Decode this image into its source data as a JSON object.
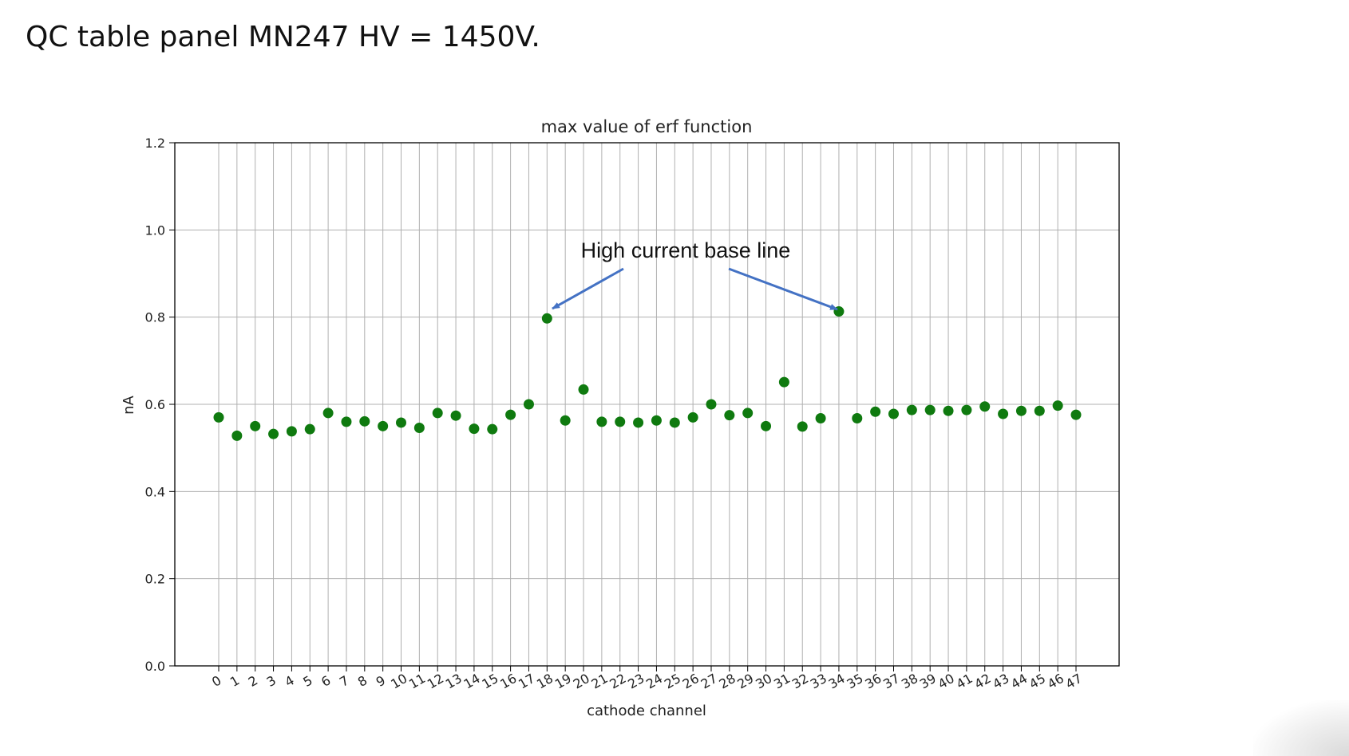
{
  "slide": {
    "title": "QC table panel MN247 HV = 1450V."
  },
  "chart_data": {
    "type": "scatter",
    "title": "max value of erf function",
    "xlabel": "cathode channel",
    "ylabel": "nA",
    "ylim": [
      0.0,
      1.2
    ],
    "yticks": [
      0.0,
      0.2,
      0.4,
      0.6,
      0.8,
      1.0,
      1.2
    ],
    "ytick_labels": [
      "0.0",
      "0.2",
      "0.4",
      "0.6",
      "0.8",
      "1.0",
      "1.2"
    ],
    "xticks": [
      0,
      1,
      2,
      3,
      4,
      5,
      6,
      7,
      8,
      9,
      10,
      11,
      12,
      13,
      14,
      15,
      16,
      17,
      18,
      19,
      20,
      21,
      22,
      23,
      24,
      25,
      26,
      27,
      28,
      29,
      30,
      31,
      32,
      33,
      34,
      35,
      36,
      37,
      38,
      39,
      40,
      41,
      42,
      43,
      44,
      45,
      46,
      47
    ],
    "xtick_labels": [
      "0",
      "1",
      "2",
      "3",
      "4",
      "5",
      "6",
      "7",
      "8",
      "9",
      "10",
      "11",
      "12",
      "13",
      "14",
      "15",
      "16",
      "17",
      "18",
      "19",
      "20",
      "21",
      "22",
      "23",
      "24",
      "25",
      "26",
      "27",
      "28",
      "29",
      "30",
      "31",
      "32",
      "33",
      "34",
      "35",
      "36",
      "37",
      "38",
      "39",
      "40",
      "41",
      "42",
      "43",
      "44",
      "45",
      "46",
      "47"
    ],
    "grid": true,
    "marker_color": "#0f7a0f",
    "series": [
      {
        "x": [
          0,
          1,
          2,
          3,
          4,
          5,
          6,
          7,
          8,
          9,
          10,
          11,
          12,
          13,
          14,
          15,
          16,
          17,
          18,
          19,
          20,
          21,
          22,
          23,
          24,
          25,
          26,
          27,
          28,
          29,
          30,
          31,
          32,
          33,
          34,
          35,
          36,
          37,
          38,
          39,
          40,
          41,
          42,
          43,
          44,
          45,
          46,
          47
        ],
        "values": [
          0.57,
          0.528,
          0.55,
          0.532,
          0.538,
          0.543,
          0.58,
          0.56,
          0.561,
          0.55,
          0.558,
          0.546,
          0.58,
          0.574,
          0.544,
          0.543,
          0.576,
          0.6,
          0.797,
          0.563,
          0.634,
          0.56,
          0.56,
          0.558,
          0.563,
          0.558,
          0.57,
          0.6,
          0.575,
          0.58,
          0.55,
          0.651,
          0.549,
          0.568,
          0.813,
          0.568,
          0.583,
          0.578,
          0.587,
          0.587,
          0.585,
          0.587,
          0.595,
          0.578,
          0.585,
          0.585,
          0.597,
          0.576
        ]
      }
    ],
    "annotation": {
      "text": "High current base line",
      "arrow_color": "#4472c4",
      "targets": [
        18,
        34
      ]
    }
  }
}
